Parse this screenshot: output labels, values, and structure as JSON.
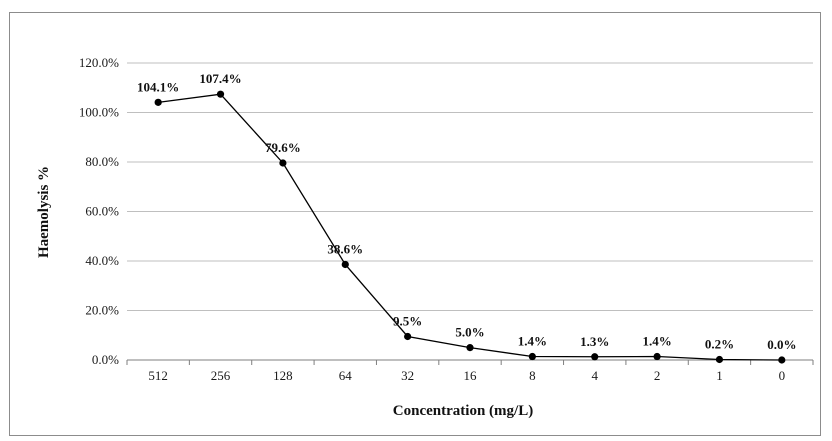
{
  "chart_data": {
    "type": "line",
    "title": "",
    "xlabel": "Concentration (mg/L)",
    "ylabel": "Haemolysis %",
    "categories": [
      "512",
      "256",
      "128",
      "64",
      "32",
      "16",
      "8",
      "4",
      "2",
      "1",
      "0"
    ],
    "series": [
      {
        "values": [
          104.1,
          107.4,
          79.6,
          38.6,
          9.5,
          5.0,
          1.4,
          1.3,
          1.4,
          0.2,
          0.0
        ],
        "data_labels": [
          "104.1%",
          "107.4%",
          "79.6%",
          "38.6%",
          "9.5%",
          "5.0%",
          "1.4%",
          "1.3%",
          "1.4%",
          "0.2%",
          "0.0%"
        ],
        "color": "#000000",
        "marker": "circle"
      }
    ],
    "ylim": [
      0,
      120
    ],
    "yticks": [
      0,
      20,
      40,
      60,
      80,
      100,
      120
    ],
    "ytick_labels": [
      "0.0%",
      "20.0%",
      "40.0%",
      "60.0%",
      "80.0%",
      "100.0%",
      "120.0%"
    ],
    "grid": "horizontal",
    "grid_color": "#bfbfbf",
    "legend": "none"
  }
}
